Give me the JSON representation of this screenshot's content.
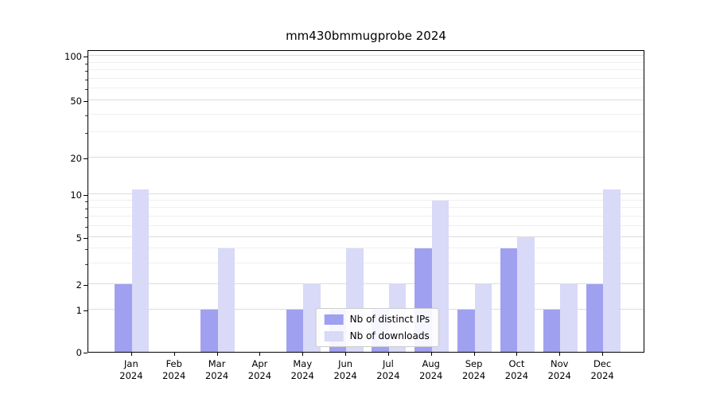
{
  "chart_data": {
    "type": "bar",
    "title": "mm430bmmugprobe 2024",
    "categories": [
      "Jan",
      "Feb",
      "Mar",
      "Apr",
      "May",
      "Jun",
      "Jul",
      "Aug",
      "Sep",
      "Oct",
      "Nov",
      "Dec"
    ],
    "year": "2024",
    "series": [
      {
        "name": "Nb of distinct IPs",
        "color": "#a0a0f0",
        "values": [
          2,
          0,
          1,
          0,
          1,
          1,
          1,
          4,
          1,
          4,
          1,
          2
        ]
      },
      {
        "name": "Nb of downloads",
        "color": "#d9d9f8",
        "values": [
          11,
          0,
          4,
          0,
          2,
          4,
          2,
          9,
          2,
          5,
          2,
          11
        ]
      }
    ],
    "yscale": "symlog",
    "yticks": [
      0,
      1,
      2,
      5,
      10,
      20,
      50,
      100
    ],
    "yticks_minor": [
      3,
      4,
      6,
      7,
      8,
      9,
      30,
      40,
      60,
      70,
      80,
      90
    ],
    "ylim": [
      0,
      115
    ],
    "grid": true,
    "legend_position": "lower center"
  }
}
